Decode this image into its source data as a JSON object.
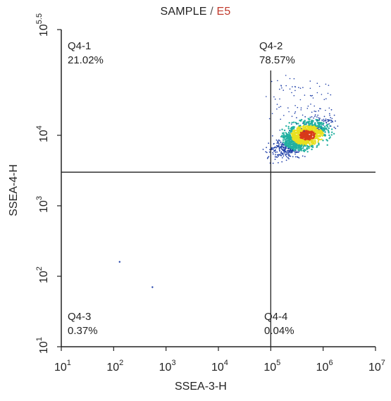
{
  "title": {
    "sample": "SAMPLE",
    "separator": " / ",
    "specimen": "E5"
  },
  "colors": {
    "axis": "#222222",
    "gate": "#222222",
    "specimen_text": "#c0392b",
    "density_low": "#1f3fa8",
    "density_mid": "#22b0a0",
    "density_high": "#e8e020",
    "density_peak": "#d83a1a"
  },
  "quadrants": {
    "q1": {
      "name": "Q4-1",
      "percent": "21.02%"
    },
    "q2": {
      "name": "Q4-2",
      "percent": "78.57%"
    },
    "q3": {
      "name": "Q4-3",
      "percent": "0.37%"
    },
    "q4": {
      "name": "Q4-4",
      "percent": "0.04%"
    }
  },
  "chart_data": {
    "type": "scatter",
    "title": "SAMPLE / E5",
    "xlabel": "SSEA-3-H",
    "ylabel": "SSEA-4-H",
    "x_scale": "log",
    "y_scale": "log",
    "xlim": [
      10,
      10000000
    ],
    "ylim": [
      10,
      316228
    ],
    "x_ticks": [
      {
        "base": "10",
        "exp": "1",
        "value": 10
      },
      {
        "base": "10",
        "exp": "2",
        "value": 100
      },
      {
        "base": "10",
        "exp": "3",
        "value": 1000
      },
      {
        "base": "10",
        "exp": "4",
        "value": 10000
      },
      {
        "base": "10",
        "exp": "5",
        "value": 100000
      },
      {
        "base": "10",
        "exp": "6",
        "value": 1000000
      },
      {
        "base": "10",
        "exp": "7",
        "value": 10000000
      }
    ],
    "y_ticks": [
      {
        "base": "10",
        "exp": "1",
        "value": 10
      },
      {
        "base": "10",
        "exp": "2",
        "value": 100
      },
      {
        "base": "10",
        "exp": "3",
        "value": 1000
      },
      {
        "base": "10",
        "exp": "4",
        "value": 10000
      },
      {
        "base": "10",
        "exp": "5.5",
        "value": 316228
      }
    ],
    "gate": {
      "x": 100000,
      "y": 3000
    },
    "quadrant_percentages": {
      "Q4-1": 21.02,
      "Q4-2": 78.57,
      "Q4-3": 0.37,
      "Q4-4": 0.04
    },
    "population": {
      "center_x": 400000,
      "center_y": 9500,
      "x_range": [
        20000,
        2000000
      ],
      "y_range": [
        1500,
        50000
      ],
      "peak_x": 500000,
      "peak_y": 10000
    },
    "outliers": [
      [
        130,
        160
      ],
      [
        550,
        70
      ]
    ],
    "grid": false,
    "legend": "none"
  }
}
